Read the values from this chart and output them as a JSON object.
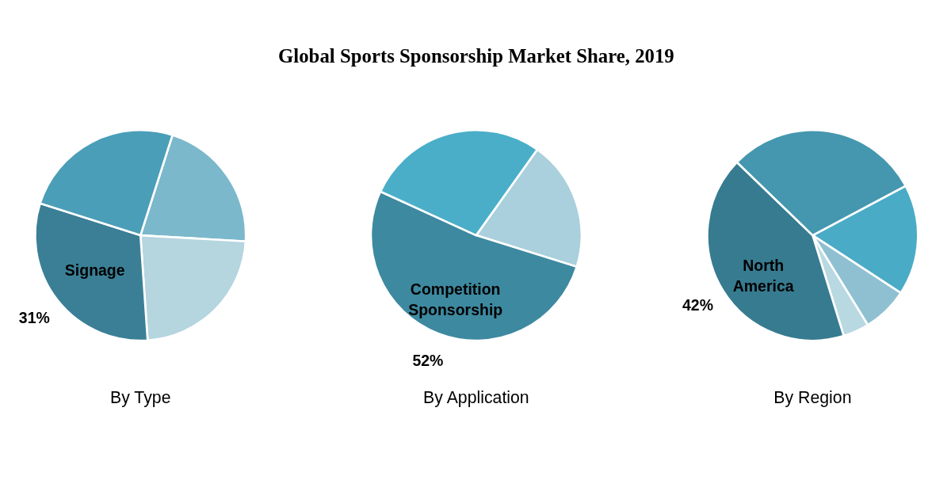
{
  "chart_data": [
    {
      "type": "pie",
      "xlabel": "By Type",
      "legend": false,
      "categories": [
        null,
        null,
        "Signage",
        null
      ],
      "values": [
        21,
        23,
        31,
        25
      ],
      "value_labels": [
        null,
        null,
        "31%",
        null
      ],
      "colors": [
        "#7bb8cc",
        "#b5d5df",
        "#3a7f96",
        "#4a9eb8"
      ]
    },
    {
      "type": "pie",
      "title": "Global Sports Sponsorship Market Share, 2019",
      "xlabel": "By Application",
      "legend": false,
      "categories": [
        null,
        "Competition Sponsorship",
        null
      ],
      "values": [
        20,
        52,
        28
      ],
      "value_labels": [
        null,
        "52%",
        null
      ],
      "colors": [
        "#a9d0dc",
        "#3d89a0",
        "#4aaec8"
      ]
    },
    {
      "type": "pie",
      "xlabel": "By Region",
      "legend": false,
      "categories": [
        null,
        null,
        null,
        "North America",
        null
      ],
      "values": [
        17,
        7,
        4,
        42,
        30
      ],
      "value_labels": [
        null,
        null,
        null,
        "42%",
        null
      ],
      "colors": [
        "#4aabc6",
        "#8fc0d2",
        "#b8d9e2",
        "#377b90",
        "#4497ae"
      ]
    }
  ]
}
